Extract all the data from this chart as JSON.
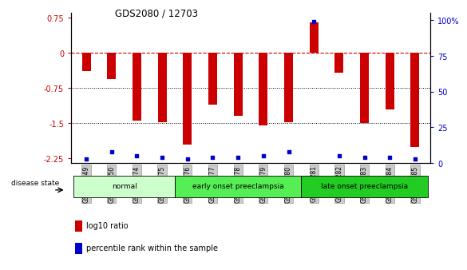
{
  "title": "GDS2080 / 12703",
  "samples": [
    "GSM106249",
    "GSM106250",
    "GSM106274",
    "GSM106275",
    "GSM106276",
    "GSM106277",
    "GSM106278",
    "GSM106279",
    "GSM106280",
    "GSM106281",
    "GSM106282",
    "GSM106283",
    "GSM106284",
    "GSM106285"
  ],
  "log10_ratio": [
    -0.38,
    -0.55,
    -1.45,
    -1.48,
    -1.95,
    -1.1,
    -1.35,
    -1.55,
    -1.48,
    0.65,
    -0.42,
    -1.5,
    -1.2,
    -2.0
  ],
  "percentile_rank": [
    3,
    8,
    5,
    4,
    3,
    4,
    4,
    5,
    8,
    99,
    5,
    4,
    4,
    3
  ],
  "ylim_left": [
    -2.35,
    0.85
  ],
  "ylim_right": [
    0,
    105
  ],
  "yticks_left": [
    0.75,
    0,
    -0.75,
    -1.5,
    -2.25
  ],
  "yticks_right": [
    100,
    75,
    50,
    25,
    0
  ],
  "groups": [
    {
      "label": "normal",
      "start": 0,
      "end": 3,
      "color": "#ccffcc"
    },
    {
      "label": "early onset preeclampsia",
      "start": 4,
      "end": 8,
      "color": "#55ee55"
    },
    {
      "label": "late onset preeclampsia",
      "start": 9,
      "end": 13,
      "color": "#22cc22"
    }
  ],
  "bar_color": "#cc0000",
  "dot_color": "#0000cc",
  "hline_y": 0,
  "hline_color": "#cc0000",
  "dotted_lines": [
    -0.75,
    -1.5
  ],
  "legend_items": [
    {
      "label": "log10 ratio",
      "color": "#cc0000"
    },
    {
      "label": "percentile rank within the sample",
      "color": "#0000cc"
    }
  ],
  "disease_state_label": "disease state",
  "bar_width": 0.35
}
